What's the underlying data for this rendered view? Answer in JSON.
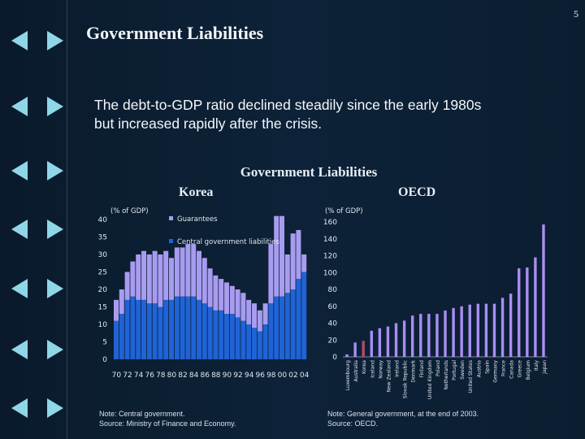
{
  "page_number": "5",
  "title": "Government Liabilities",
  "body": {
    "line1": "The debt-to-GDP ratio declined steadily since the early 1980s",
    "line2": "but increased rapidly after the crisis."
  },
  "figure": {
    "title": "Government Liabilities",
    "korea_label": "Korea",
    "oecd_label": "OECD",
    "korea_note": "Note: Central government.",
    "korea_source": "Source: Ministry of Finance and Economy.",
    "oecd_note": "Note: General government, at the end of 2003.",
    "oecd_source": "Source: OECD."
  },
  "colors": {
    "central": "#1f63d6",
    "guarantees": "#a89cf0",
    "oecd_bar": "#a88ef2",
    "korea_highlight": "#b24a68",
    "background": "#0c1f33"
  },
  "chart_data": [
    {
      "type": "bar",
      "stacked": true,
      "title": "Korea",
      "ylabel": "(% of GDP)",
      "ylim": [
        0,
        40
      ],
      "yticks": [
        0,
        5,
        10,
        15,
        20,
        25,
        30,
        35,
        40
      ],
      "categories": [
        "70",
        "71",
        "72",
        "73",
        "74",
        "75",
        "76",
        "77",
        "78",
        "79",
        "80",
        "81",
        "82",
        "83",
        "84",
        "85",
        "86",
        "87",
        "88",
        "89",
        "90",
        "91",
        "92",
        "93",
        "94",
        "95",
        "96",
        "97",
        "98",
        "99",
        "00",
        "01",
        "02",
        "03",
        "04"
      ],
      "xtick_labels": [
        "70",
        "72",
        "74",
        "76",
        "78",
        "80",
        "82",
        "84",
        "86",
        "88",
        "90",
        "92",
        "94",
        "96",
        "98",
        "00",
        "02",
        "04"
      ],
      "series": [
        {
          "name": "Central government liabilities",
          "values": [
            11,
            13,
            17,
            18,
            17,
            17,
            16,
            16,
            15,
            17,
            17,
            18,
            18,
            18,
            18,
            17,
            16,
            15,
            14,
            14,
            13,
            13,
            12,
            11,
            10,
            9,
            8,
            10,
            16,
            18,
            18,
            19,
            20,
            23,
            25
          ]
        },
        {
          "name": "Guarantees",
          "values": [
            6,
            7,
            8,
            10,
            13,
            14,
            14,
            15,
            15,
            14,
            12,
            14,
            14,
            15,
            15,
            14,
            13,
            11,
            10,
            9,
            9,
            8,
            8,
            8,
            7,
            7,
            6,
            6,
            17,
            23,
            23,
            11,
            16,
            14,
            5
          ]
        }
      ]
    },
    {
      "type": "bar",
      "title": "OECD",
      "ylabel": "(% of GDP)",
      "ylim": [
        0,
        160
      ],
      "yticks": [
        0,
        20,
        40,
        60,
        80,
        100,
        120,
        140,
        160
      ],
      "highlight": "Korea",
      "categories": [
        "Luxembourg",
        "Australia",
        "Korea",
        "Iceland",
        "Norway",
        "New Zealand",
        "Ireland",
        "Slovak Republic",
        "Denmark",
        "Finland",
        "United Kingdom",
        "Poland",
        "Netherlands",
        "Portugal",
        "Sweden",
        "United States",
        "Austria",
        "Spain",
        "Germany",
        "France",
        "Canada",
        "Greece",
        "Belgium",
        "Italy",
        "Japan"
      ],
      "values": [
        3,
        17,
        19,
        31,
        34,
        36,
        40,
        43,
        49,
        51,
        51,
        51,
        55,
        58,
        60,
        62,
        63,
        63,
        63,
        70,
        75,
        105,
        106,
        118,
        157
      ]
    }
  ],
  "legend": {
    "guarantees": "Guarantees",
    "central": "Central government liabilities"
  }
}
